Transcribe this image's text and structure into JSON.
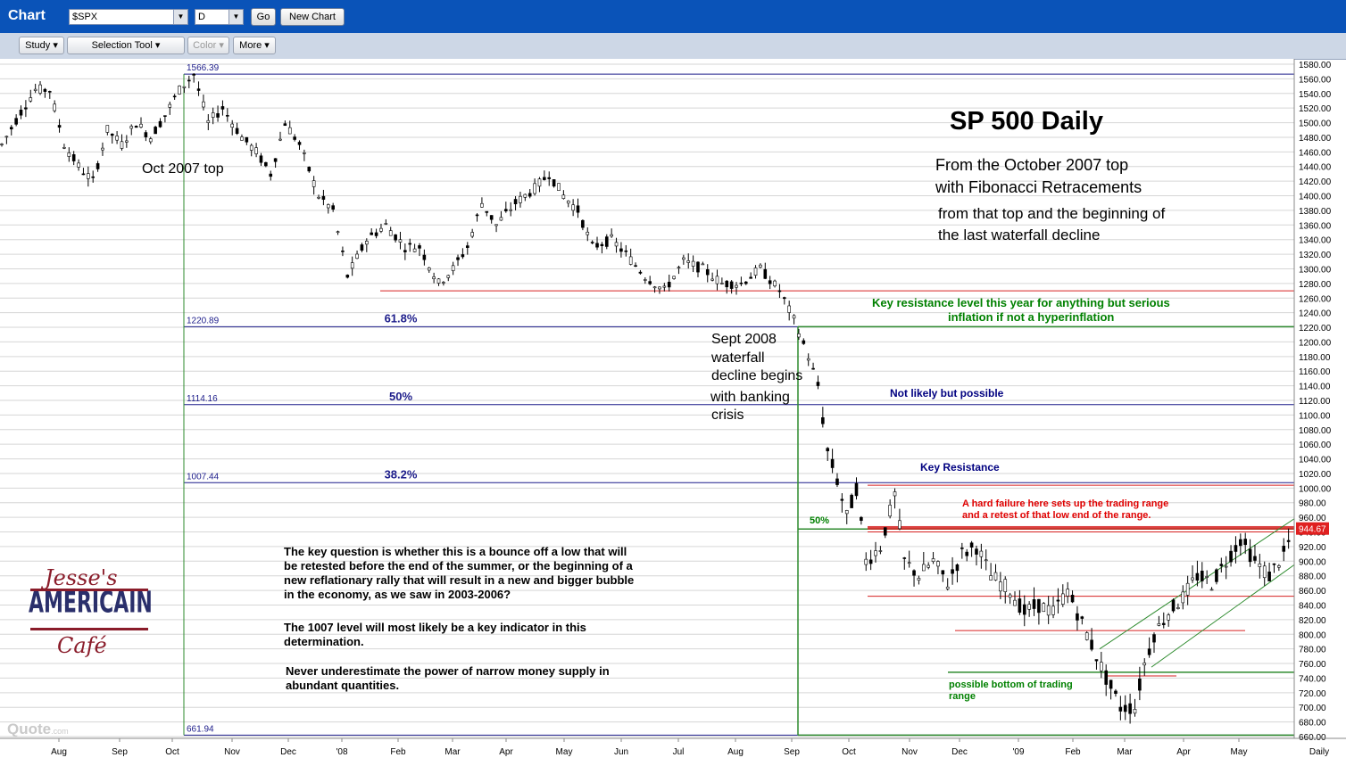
{
  "window": {
    "title": "Chart"
  },
  "header": {
    "symbol_value": "$SPX",
    "period_value": "D",
    "go_label": "Go",
    "new_chart_label": "New Chart"
  },
  "toolbar": {
    "study_label": "Study ▾",
    "selection_label": "Selection Tool ▾",
    "color_label": "Color ▾",
    "more_label": "More ▾"
  },
  "annotations": {
    "title": "SP 500 Daily",
    "subtitle_line1": "From the October  2007 top",
    "subtitle_line2": "with Fibonacci Retracements",
    "desc_line1": "from that top and the beginning of",
    "desc_line2": "the last waterfall decline",
    "oct_top": "Oct 2007 top",
    "sept_1": "Sept 2008",
    "sept_2": "waterfall",
    "sept_3": "decline begins",
    "sept_4": "with banking",
    "sept_5": "crisis",
    "key_res_1": "Key resistance level this year for anything but serious",
    "key_res_2": "inflation if not a hyperinflation",
    "not_likely": "Not likely but possible",
    "key_resistance": "Key Resistance",
    "hard_fail_1": "A hard failure here sets up the trading range",
    "hard_fail_2": "and a retest of that low end of the range.",
    "possible_bottom_1": "possible bottom of trading",
    "possible_bottom_2": "range",
    "q_1": "The key question is whether this is a bounce off a low that will",
    "q_2": "be retested before the end of the summer, or the beginning of a",
    "q_3": "new reflationary rally that will result in a new and bigger bubble",
    "q_4": "in the economy, as we saw in 2003-2006?",
    "l_1": "The 1007 level will most likely be a key indicator in this",
    "l_2": "determination.",
    "n_1": "Never underestimate the power of narrow money supply in",
    "n_2": "abundant quantities.",
    "logo_top": "Jesse's",
    "logo_mid": "AMERICAIN",
    "logo_bot": "Café",
    "quote_logo": "Quote",
    "quote_logo_suffix": ".com"
  },
  "chart_data": {
    "type": "candlestick",
    "symbol": "$SPX",
    "interval": "Daily",
    "ylim": [
      655,
      1585
    ],
    "y_ticks": [
      660,
      680,
      700,
      720,
      740,
      760,
      780,
      800,
      820,
      840,
      860,
      880,
      900,
      920,
      940,
      960,
      980,
      1000,
      1020,
      1040,
      1060,
      1080,
      1100,
      1120,
      1140,
      1160,
      1180,
      1200,
      1220,
      1240,
      1260,
      1280,
      1300,
      1320,
      1340,
      1360,
      1380,
      1400,
      1420,
      1440,
      1460,
      1480,
      1500,
      1520,
      1540,
      1560,
      1580
    ],
    "x_tick_labels": [
      "Aug",
      "Sep",
      "Oct",
      "Nov",
      "Dec",
      "'08",
      "Feb",
      "Mar",
      "Apr",
      "May",
      "Jun",
      "Jul",
      "Aug",
      "Sep",
      "Oct",
      "Nov",
      "Dec",
      "'09",
      "Feb",
      "Mar",
      "Apr",
      "May"
    ],
    "x_axis_label": "Daily",
    "last_price": "944.67",
    "fib_levels": [
      {
        "price_label": "1566.39",
        "value": 1566.39,
        "pct": ""
      },
      {
        "price_label": "1220.89",
        "value": 1220.89,
        "pct": "61.8%"
      },
      {
        "price_label": "1114.16",
        "value": 1114.16,
        "pct": "50%"
      },
      {
        "price_label": "1007.44",
        "value": 1007.44,
        "pct": "38.2%"
      },
      {
        "price_label": "661.94",
        "value": 661.94,
        "pct": ""
      }
    ],
    "green_fib_pct": "50%",
    "price_path": [
      [
        0,
        1470
      ],
      [
        4,
        1515
      ],
      [
        7,
        1545
      ],
      [
        10,
        1545
      ],
      [
        13,
        1470
      ],
      [
        16,
        1440
      ],
      [
        19,
        1420
      ],
      [
        22,
        1490
      ],
      [
        25,
        1470
      ],
      [
        28,
        1500
      ],
      [
        31,
        1480
      ],
      [
        34,
        1510
      ],
      [
        37,
        1545
      ],
      [
        40,
        1566
      ],
      [
        43,
        1500
      ],
      [
        46,
        1520
      ],
      [
        50,
        1480
      ],
      [
        53,
        1460
      ],
      [
        56,
        1430
      ],
      [
        59,
        1500
      ],
      [
        62,
        1470
      ],
      [
        66,
        1400
      ],
      [
        69,
        1380
      ],
      [
        72,
        1290
      ],
      [
        76,
        1340
      ],
      [
        80,
        1360
      ],
      [
        84,
        1330
      ],
      [
        87,
        1330
      ],
      [
        91,
        1280
      ],
      [
        94,
        1300
      ],
      [
        97,
        1330
      ],
      [
        100,
        1390
      ],
      [
        103,
        1360
      ],
      [
        107,
        1390
      ],
      [
        111,
        1410
      ],
      [
        114,
        1430
      ],
      [
        117,
        1400
      ],
      [
        120,
        1380
      ],
      [
        123,
        1330
      ],
      [
        127,
        1340
      ],
      [
        130,
        1320
      ],
      [
        134,
        1290
      ],
      [
        138,
        1270
      ],
      [
        142,
        1310
      ],
      [
        146,
        1300
      ],
      [
        150,
        1280
      ],
      [
        154,
        1280
      ],
      [
        158,
        1300
      ],
      [
        162,
        1270
      ],
      [
        165,
        1230
      ],
      [
        168,
        1180
      ],
      [
        170,
        1140
      ],
      [
        172,
        1050
      ],
      [
        174,
        1010
      ],
      [
        176,
        960
      ],
      [
        178,
        1000
      ],
      [
        180,
        900
      ],
      [
        183,
        920
      ],
      [
        186,
        990
      ],
      [
        188,
        900
      ],
      [
        191,
        880
      ],
      [
        194,
        900
      ],
      [
        197,
        870
      ],
      [
        200,
        910
      ],
      [
        203,
        920
      ],
      [
        206,
        880
      ],
      [
        210,
        860
      ],
      [
        213,
        830
      ],
      [
        216,
        840
      ],
      [
        219,
        830
      ],
      [
        222,
        860
      ],
      [
        226,
        800
      ],
      [
        230,
        740
      ],
      [
        233,
        700
      ],
      [
        236,
        700
      ],
      [
        238,
        760
      ],
      [
        240,
        800
      ],
      [
        243,
        830
      ],
      [
        246,
        850
      ],
      [
        249,
        880
      ],
      [
        252,
        870
      ],
      [
        255,
        900
      ],
      [
        258,
        930
      ],
      [
        261,
        900
      ],
      [
        264,
        880
      ],
      [
        267,
        910
      ],
      [
        269,
        940
      ]
    ]
  }
}
